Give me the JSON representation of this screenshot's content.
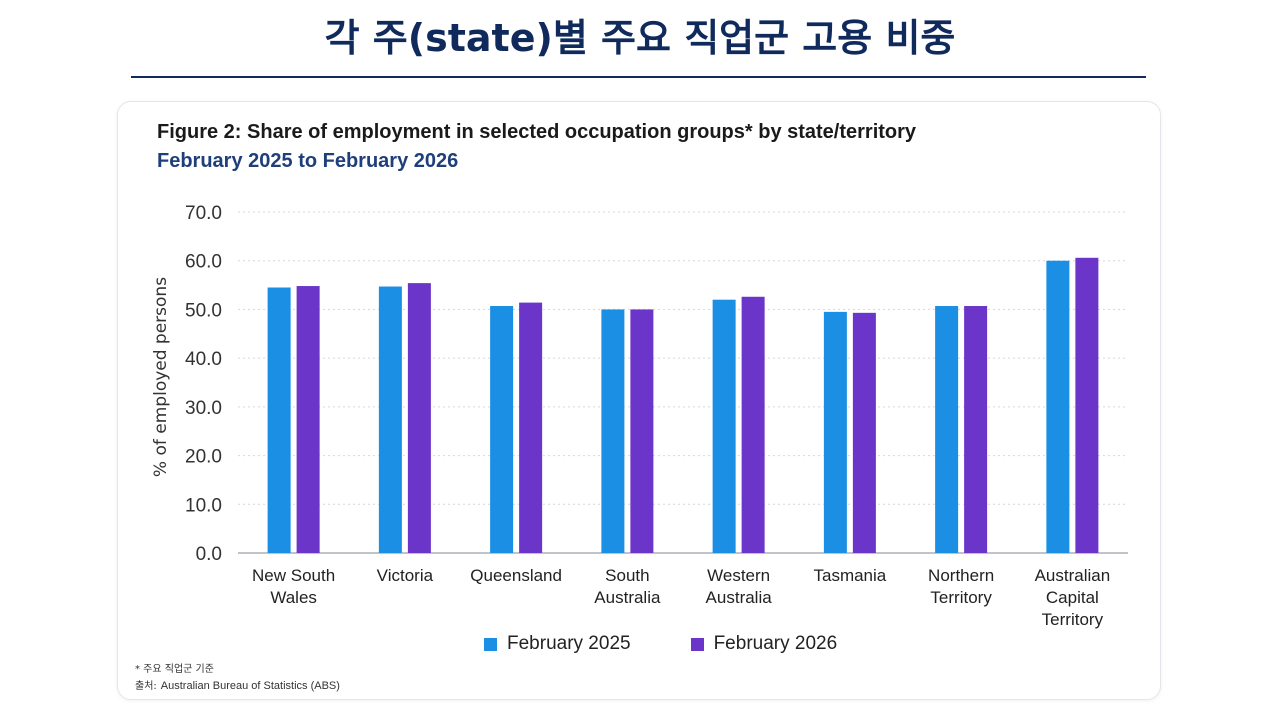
{
  "slide_title": "각 주(state)별 주요 직업군 고용 비중",
  "footnote": "* 주요 직업군 기준",
  "source_label": "출처:",
  "source_text": "Australian Bureau of Statistics (ABS)",
  "colors": {
    "feb2025": "#1a8fe3",
    "feb2026": "#6a35c8",
    "title": "#102a5c",
    "subtitle": "#1f3f7a"
  },
  "chart_data": {
    "type": "bar",
    "title": "Figure 2: Share of employment in selected occupation groups* by state/territory",
    "subtitle": "February 2025 to February 2026",
    "ylabel": "% of employed persons",
    "xlabel": "",
    "ylim": [
      0,
      70
    ],
    "yticks": [
      "0.0",
      "10.0",
      "20.0",
      "30.0",
      "40.0",
      "50.0",
      "60.0",
      "70.0"
    ],
    "grid": true,
    "legend_position": "bottom",
    "categories": [
      [
        "New South",
        "Wales"
      ],
      [
        "Victoria"
      ],
      [
        "Queensland"
      ],
      [
        "South",
        "Australia"
      ],
      [
        "Western",
        "Australia"
      ],
      [
        "Tasmania"
      ],
      [
        "Northern",
        "Territory"
      ],
      [
        "Australian",
        "Capital",
        "Territory"
      ]
    ],
    "series": [
      {
        "name": "February 2025",
        "values": [
          54.5,
          54.7,
          50.7,
          50.0,
          52.0,
          49.5,
          50.7,
          60.0
        ]
      },
      {
        "name": "February 2026",
        "values": [
          54.8,
          55.4,
          51.4,
          50.0,
          52.6,
          49.3,
          50.7,
          60.6
        ]
      }
    ]
  }
}
